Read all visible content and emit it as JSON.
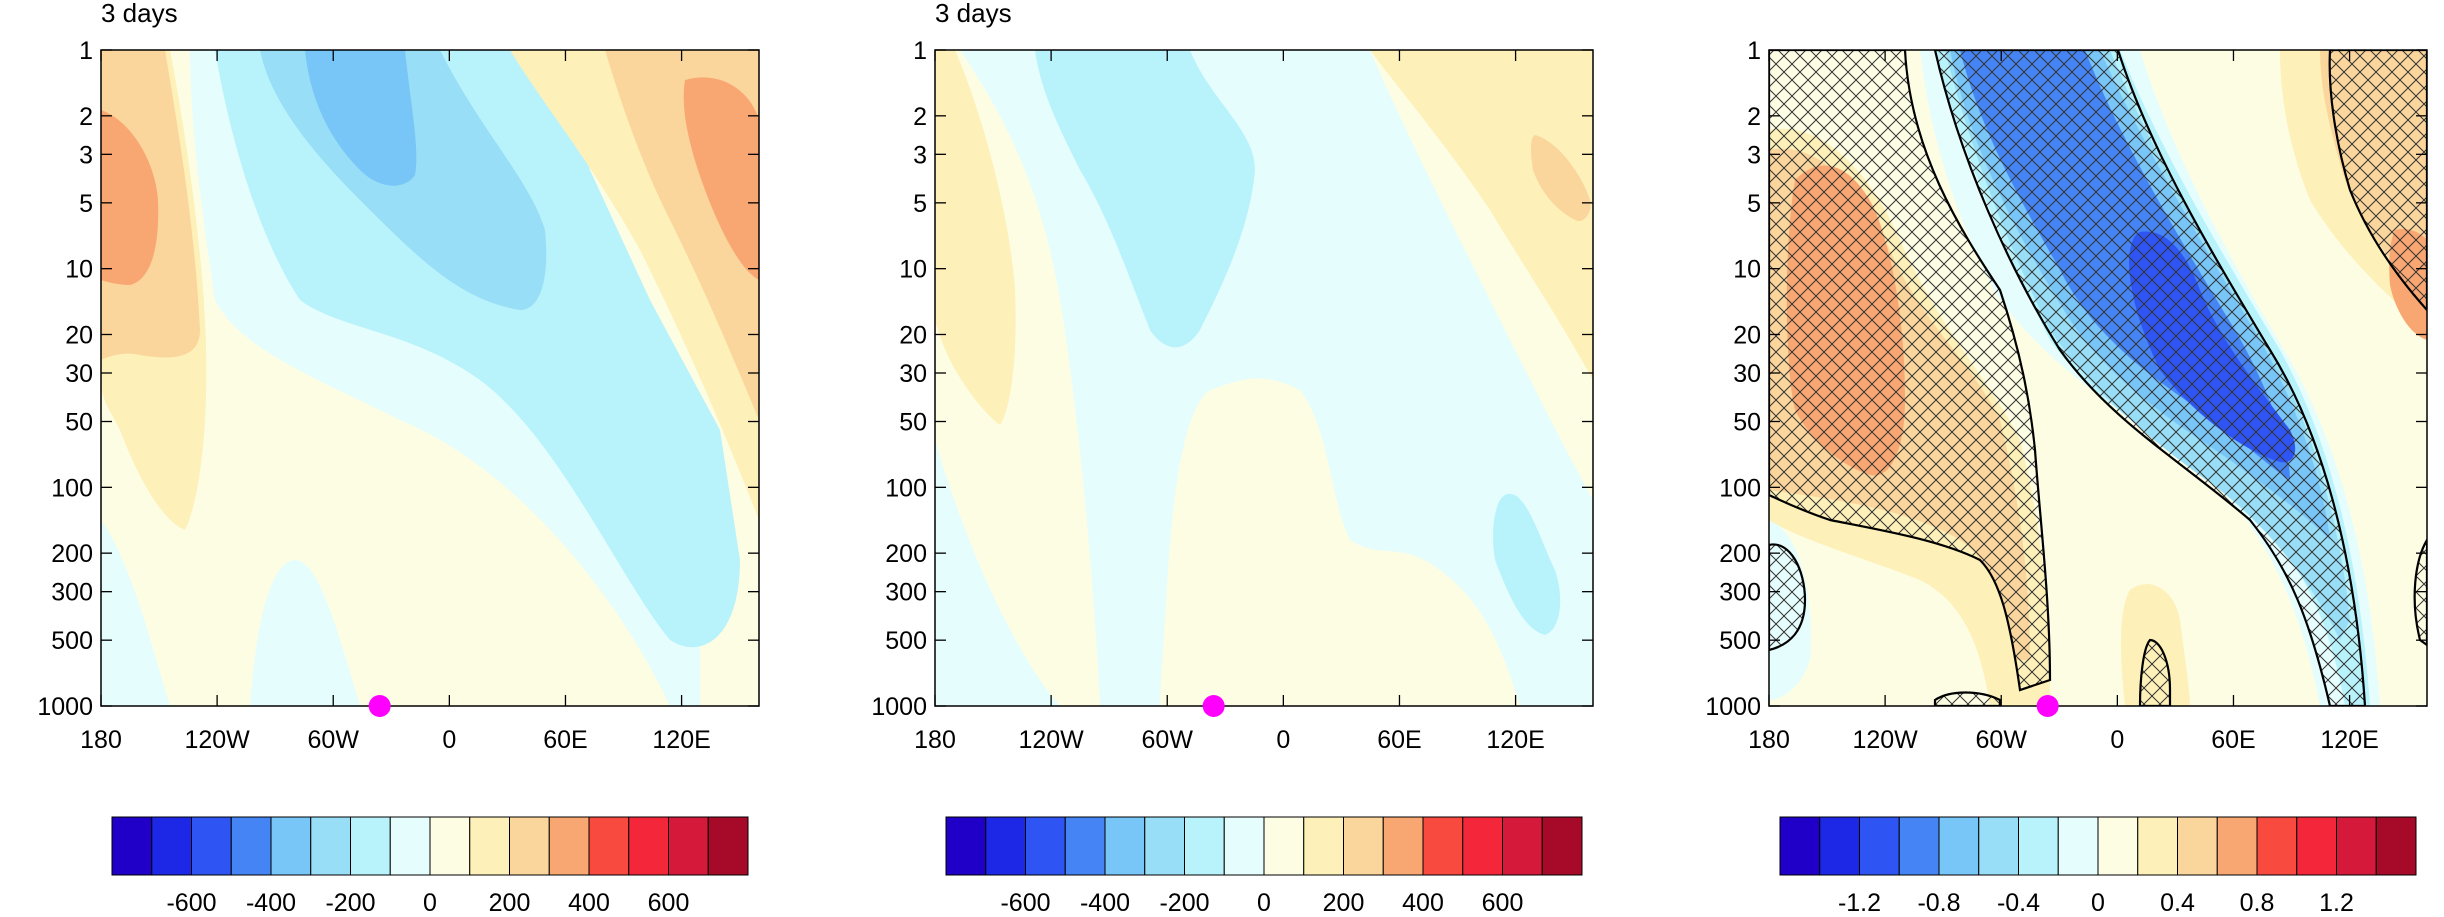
{
  "palette": [
    "#2000c8",
    "#1c28e6",
    "#2e55f4",
    "#4584f4",
    "#78c5f8",
    "#97def6",
    "#b8f3fc",
    "#e6fdfd",
    "#fdfde4",
    "#fdf0b8",
    "#fbd69c",
    "#f9a772",
    "#f94a40",
    "#f3263a",
    "#d4193a",
    "#a60a28"
  ],
  "marker_color": "#ff00ff",
  "chart_data": [
    {
      "type": "heatmap",
      "title": "3 days",
      "xlabel": "",
      "ylabel": "",
      "x_ticks": [
        "180",
        "120W",
        "60W",
        "0",
        "60E",
        "120E"
      ],
      "y_ticks": [
        "1",
        "2",
        "3",
        "5",
        "10",
        "20",
        "30",
        "50",
        "100",
        "200",
        "300",
        "500",
        "1000"
      ],
      "y_scale": "log",
      "ylim": [
        1000,
        1
      ],
      "colorbar_labels": [
        "-600",
        "-400",
        "-200",
        "0",
        "200",
        "400",
        "600"
      ],
      "marker": {
        "lon": -36,
        "pressure": 1000
      },
      "grid": false
    },
    {
      "type": "heatmap",
      "title": "3 days",
      "xlabel": "",
      "ylabel": "",
      "x_ticks": [
        "180",
        "120W",
        "60W",
        "0",
        "60E",
        "120E"
      ],
      "y_ticks": [
        "1",
        "2",
        "3",
        "5",
        "10",
        "20",
        "30",
        "50",
        "100",
        "200",
        "300",
        "500",
        "1000"
      ],
      "y_scale": "log",
      "ylim": [
        1000,
        1
      ],
      "colorbar_labels": [
        "-600",
        "-400",
        "-200",
        "0",
        "200",
        "400",
        "600"
      ],
      "marker": {
        "lon": -36,
        "pressure": 1000
      },
      "grid": false
    },
    {
      "type": "heatmap",
      "title": "",
      "xlabel": "",
      "ylabel": "",
      "x_ticks": [
        "180",
        "120W",
        "60W",
        "0",
        "60E",
        "120E"
      ],
      "y_ticks": [
        "1",
        "2",
        "3",
        "5",
        "10",
        "20",
        "30",
        "50",
        "100",
        "200",
        "300",
        "500",
        "1000"
      ],
      "y_scale": "log",
      "ylim": [
        1000,
        1
      ],
      "colorbar_labels": [
        "-1.2",
        "-0.8",
        "-0.4",
        "0",
        "0.4",
        "0.8",
        "1.2"
      ],
      "marker": {
        "lon": -36,
        "pressure": 1000
      },
      "hatched": true,
      "grid": false
    }
  ]
}
